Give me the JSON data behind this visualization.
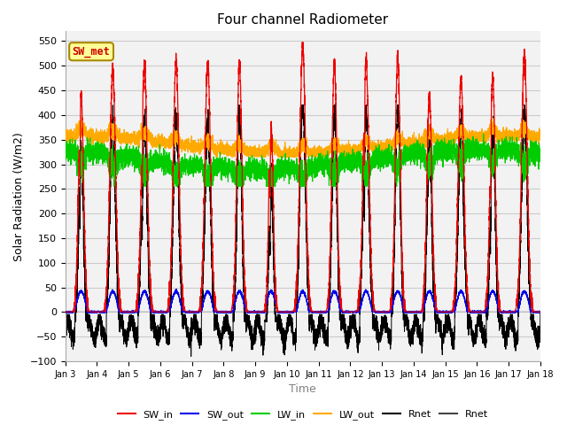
{
  "title": "Four channel Radiometer",
  "xlabel": "Time",
  "ylabel": "Solar Radiation (W/m2)",
  "ylim": [
    -100,
    570
  ],
  "yticks": [
    -100,
    -50,
    0,
    50,
    100,
    150,
    200,
    250,
    300,
    350,
    400,
    450,
    500,
    550
  ],
  "colors": {
    "SW_in": "#ee0000",
    "SW_out": "#0000ee",
    "LW_in": "#00cc00",
    "LW_out": "#ffaa00",
    "Rnet": "#000000"
  },
  "annotation_text": "SW_met",
  "annotation_color": "#cc0000",
  "annotation_bg": "#ffff99",
  "annotation_border": "#aa8800",
  "plot_bg": "#f2f2f2",
  "grid_color": "#cccccc",
  "title_fontsize": 11,
  "label_fontsize": 9,
  "tick_fontsize": 8
}
